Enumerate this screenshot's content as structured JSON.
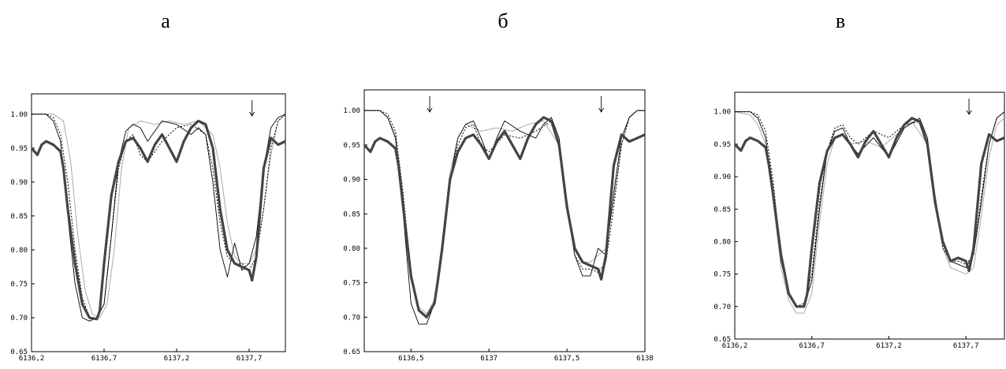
{
  "panels": [
    {
      "letter": "а"
    },
    {
      "letter": "б"
    },
    {
      "letter": "в"
    }
  ],
  "chart_data": [
    {
      "type": "line",
      "title": "",
      "xlabel": "",
      "ylabel": "",
      "xlim": [
        6136.2,
        6137.95
      ],
      "ylim": [
        0.65,
        1.03
      ],
      "xticks": [
        6136.2,
        6136.7,
        6137.2,
        6137.7
      ],
      "xtick_labels": [
        "6136,2",
        "6136,7",
        "6137,2",
        "6137,7"
      ],
      "yticks": [
        0.65,
        0.7,
        0.75,
        0.8,
        0.85,
        0.9,
        0.95,
        1.0
      ],
      "ytick_labels": [
        "0.65",
        "0.70",
        "0.75",
        "0.80",
        "0.85",
        "0.90",
        "0.95",
        "1.00"
      ],
      "arrows": [
        6137.72
      ],
      "series": [
        {
          "style": "thick",
          "x": [
            6136.2,
            6136.24,
            6136.27,
            6136.3,
            6136.35,
            6136.4,
            6136.42,
            6136.45,
            6136.5,
            6136.55,
            6136.6,
            6136.65,
            6136.67,
            6136.7,
            6136.75,
            6136.8,
            6136.85,
            6136.9,
            6136.95,
            6137.0,
            6137.05,
            6137.1,
            6137.15,
            6137.2,
            6137.25,
            6137.3,
            6137.35,
            6137.4,
            6137.45,
            6137.5,
            6137.55,
            6137.6,
            6137.65,
            6137.7,
            6137.72,
            6137.75,
            6137.8,
            6137.85,
            6137.9,
            6137.95
          ],
          "y": [
            0.95,
            0.94,
            0.955,
            0.96,
            0.955,
            0.945,
            0.92,
            0.86,
            0.78,
            0.72,
            0.7,
            0.698,
            0.71,
            0.78,
            0.88,
            0.93,
            0.96,
            0.965,
            0.95,
            0.93,
            0.955,
            0.97,
            0.95,
            0.93,
            0.96,
            0.98,
            0.99,
            0.985,
            0.95,
            0.86,
            0.8,
            0.78,
            0.775,
            0.77,
            0.755,
            0.79,
            0.92,
            0.965,
            0.955,
            0.96
          ]
        },
        {
          "style": "thin",
          "x": [
            6136.2,
            6136.3,
            6136.35,
            6136.4,
            6136.45,
            6136.5,
            6136.55,
            6136.6,
            6136.65,
            6136.7,
            6136.75,
            6136.8,
            6136.85,
            6136.9,
            6136.95,
            6137.0,
            6137.1,
            6137.2,
            6137.3,
            6137.35,
            6137.4,
            6137.45,
            6137.5,
            6137.55,
            6137.6,
            6137.65,
            6137.7,
            6137.75,
            6137.8,
            6137.85,
            6137.9,
            6137.95
          ],
          "y": [
            1.0,
            1.0,
            0.99,
            0.96,
            0.85,
            0.75,
            0.7,
            0.695,
            0.7,
            0.72,
            0.82,
            0.93,
            0.975,
            0.985,
            0.98,
            0.96,
            0.99,
            0.985,
            0.97,
            0.98,
            0.97,
            0.9,
            0.8,
            0.76,
            0.81,
            0.77,
            0.78,
            0.82,
            0.92,
            0.98,
            0.995,
            1.0
          ]
        },
        {
          "style": "dotted",
          "x": [
            6136.2,
            6136.3,
            6136.35,
            6136.4,
            6136.45,
            6136.5,
            6136.55,
            6136.6,
            6136.65,
            6136.7,
            6136.75,
            6136.8,
            6136.85,
            6136.9,
            6136.95,
            6137.0,
            6137.1,
            6137.2,
            6137.3,
            6137.4,
            6137.45,
            6137.5,
            6137.55,
            6137.6,
            6137.65,
            6137.7,
            6137.75,
            6137.8,
            6137.85,
            6137.9,
            6137.95
          ],
          "y": [
            1.0,
            1.0,
            0.995,
            0.97,
            0.9,
            0.8,
            0.73,
            0.7,
            0.7,
            0.72,
            0.82,
            0.92,
            0.96,
            0.97,
            0.94,
            0.93,
            0.96,
            0.98,
            0.985,
            0.97,
            0.92,
            0.84,
            0.79,
            0.78,
            0.78,
            0.77,
            0.79,
            0.86,
            0.95,
            0.99,
            1.0
          ]
        },
        {
          "style": "gray",
          "x": [
            6136.2,
            6136.35,
            6136.42,
            6136.47,
            6136.52,
            6136.57,
            6136.62,
            6136.67,
            6136.72,
            6136.77,
            6136.82,
            6136.87,
            6136.95,
            6137.05,
            6137.15,
            6137.25,
            6137.35,
            6137.45,
            6137.5,
            6137.55,
            6137.6,
            6137.65,
            6137.7,
            6137.75,
            6137.8,
            6137.85,
            6137.9,
            6137.95
          ],
          "y": [
            1.0,
            1.0,
            0.99,
            0.93,
            0.82,
            0.74,
            0.705,
            0.7,
            0.72,
            0.8,
            0.92,
            0.98,
            0.99,
            0.985,
            0.99,
            0.985,
            0.99,
            0.97,
            0.92,
            0.84,
            0.79,
            0.78,
            0.78,
            0.8,
            0.86,
            0.94,
            0.99,
            1.0
          ]
        }
      ]
    },
    {
      "type": "line",
      "title": "",
      "xlabel": "",
      "ylabel": "",
      "xlim": [
        6136.2,
        6138.0
      ],
      "ylim": [
        0.65,
        1.03
      ],
      "xticks": [
        6136.5,
        6137.0,
        6137.5,
        6138.0
      ],
      "xtick_labels": [
        "6136,5",
        "6137",
        "6137,5",
        "6138"
      ],
      "yticks": [
        0.65,
        0.7,
        0.75,
        0.8,
        0.85,
        0.9,
        0.95,
        1.0
      ],
      "ytick_labels": [
        "0.65",
        "0.70",
        "0.75",
        "0.80",
        "0.85",
        "0.90",
        "0.95",
        "1.00"
      ],
      "arrows": [
        6136.62,
        6137.72
      ],
      "series": [
        {
          "style": "thick",
          "x": [
            6136.2,
            6136.24,
            6136.27,
            6136.3,
            6136.35,
            6136.4,
            6136.42,
            6136.45,
            6136.5,
            6136.55,
            6136.6,
            6136.65,
            6136.67,
            6136.7,
            6136.75,
            6136.8,
            6136.85,
            6136.9,
            6136.95,
            6137.0,
            6137.05,
            6137.1,
            6137.15,
            6137.2,
            6137.25,
            6137.3,
            6137.35,
            6137.4,
            6137.45,
            6137.5,
            6137.55,
            6137.6,
            6137.65,
            6137.7,
            6137.72,
            6137.75,
            6137.8,
            6137.85,
            6137.9,
            6137.95,
            6138.0
          ],
          "y": [
            0.95,
            0.94,
            0.955,
            0.96,
            0.955,
            0.945,
            0.92,
            0.86,
            0.76,
            0.71,
            0.7,
            0.72,
            0.75,
            0.8,
            0.9,
            0.94,
            0.96,
            0.965,
            0.95,
            0.93,
            0.955,
            0.97,
            0.95,
            0.93,
            0.96,
            0.98,
            0.99,
            0.985,
            0.95,
            0.86,
            0.8,
            0.78,
            0.775,
            0.77,
            0.755,
            0.79,
            0.92,
            0.965,
            0.955,
            0.96,
            0.965
          ]
        },
        {
          "style": "thin",
          "x": [
            6136.2,
            6136.3,
            6136.35,
            6136.4,
            6136.45,
            6136.5,
            6136.55,
            6136.6,
            6136.65,
            6136.7,
            6136.75,
            6136.8,
            6136.85,
            6136.9,
            6136.95,
            6137.0,
            6137.05,
            6137.1,
            6137.2,
            6137.3,
            6137.35,
            6137.4,
            6137.45,
            6137.5,
            6137.55,
            6137.6,
            6137.65,
            6137.7,
            6137.75,
            6137.8,
            6137.85,
            6137.9,
            6137.95,
            6138.0
          ],
          "y": [
            1.0,
            1.0,
            0.99,
            0.96,
            0.85,
            0.72,
            0.69,
            0.69,
            0.72,
            0.8,
            0.9,
            0.96,
            0.98,
            0.985,
            0.96,
            0.93,
            0.96,
            0.985,
            0.97,
            0.96,
            0.98,
            0.99,
            0.96,
            0.86,
            0.79,
            0.76,
            0.76,
            0.8,
            0.79,
            0.88,
            0.96,
            0.99,
            1.0,
            1.0
          ]
        },
        {
          "style": "dotted",
          "x": [
            6136.2,
            6136.3,
            6136.35,
            6136.4,
            6136.45,
            6136.5,
            6136.55,
            6136.6,
            6136.65,
            6136.7,
            6136.75,
            6136.8,
            6136.85,
            6136.9,
            6136.95,
            6137.0,
            6137.1,
            6137.2,
            6137.3,
            6137.4,
            6137.45,
            6137.5,
            6137.55,
            6137.6,
            6137.65,
            6137.7,
            6137.75,
            6137.8,
            6137.85,
            6137.9,
            6137.95,
            6138.0
          ],
          "y": [
            1.0,
            1.0,
            0.995,
            0.97,
            0.88,
            0.76,
            0.71,
            0.7,
            0.72,
            0.8,
            0.9,
            0.95,
            0.975,
            0.98,
            0.95,
            0.94,
            0.965,
            0.96,
            0.97,
            0.985,
            0.95,
            0.86,
            0.79,
            0.77,
            0.77,
            0.765,
            0.78,
            0.86,
            0.95,
            0.99,
            1.0,
            1.0
          ]
        },
        {
          "style": "gray",
          "x": [
            6136.2,
            6136.3,
            6136.35,
            6136.4,
            6136.45,
            6136.5,
            6136.55,
            6136.6,
            6136.65,
            6136.7,
            6136.75,
            6136.8,
            6136.85,
            6136.95,
            6137.05,
            6137.15,
            6137.25,
            6137.35,
            6137.45,
            6137.5,
            6137.55,
            6137.6,
            6137.65,
            6137.7,
            6137.75,
            6137.8,
            6137.85,
            6137.9,
            6137.95,
            6138.0
          ],
          "y": [
            1.0,
            1.0,
            0.99,
            0.965,
            0.87,
            0.76,
            0.715,
            0.705,
            0.725,
            0.81,
            0.91,
            0.96,
            0.98,
            0.97,
            0.975,
            0.97,
            0.98,
            0.985,
            0.95,
            0.87,
            0.8,
            0.78,
            0.78,
            0.79,
            0.8,
            0.87,
            0.95,
            0.99,
            1.0,
            1.0
          ]
        }
      ]
    },
    {
      "type": "line",
      "title": "",
      "xlabel": "",
      "ylabel": "",
      "xlim": [
        6136.2,
        6137.95
      ],
      "ylim": [
        0.65,
        1.03
      ],
      "xticks": [
        6136.2,
        6136.7,
        6137.2,
        6137.7
      ],
      "xtick_labels": [
        "6136,2",
        "6136,7",
        "6137,2",
        "6137,7"
      ],
      "yticks": [
        0.65,
        0.7,
        0.75,
        0.8,
        0.85,
        0.9,
        0.95,
        1.0
      ],
      "ytick_labels": [
        "0.65",
        "0.70",
        "0.75",
        "0.80",
        "0.85",
        "0.90",
        "0.95",
        "1.00"
      ],
      "arrows": [
        6137.72
      ],
      "series": [
        {
          "style": "thick",
          "x": [
            6136.2,
            6136.24,
            6136.27,
            6136.3,
            6136.35,
            6136.4,
            6136.42,
            6136.45,
            6136.5,
            6136.55,
            6136.6,
            6136.65,
            6136.67,
            6136.7,
            6136.75,
            6136.8,
            6136.85,
            6136.9,
            6136.95,
            6137.0,
            6137.05,
            6137.1,
            6137.15,
            6137.2,
            6137.25,
            6137.3,
            6137.35,
            6137.4,
            6137.45,
            6137.5,
            6137.55,
            6137.6,
            6137.65,
            6137.7,
            6137.72,
            6137.75,
            6137.8,
            6137.85,
            6137.9,
            6137.95
          ],
          "y": [
            0.95,
            0.94,
            0.955,
            0.96,
            0.955,
            0.945,
            0.92,
            0.87,
            0.78,
            0.72,
            0.7,
            0.7,
            0.72,
            0.79,
            0.89,
            0.94,
            0.96,
            0.965,
            0.95,
            0.93,
            0.955,
            0.97,
            0.95,
            0.93,
            0.96,
            0.98,
            0.99,
            0.985,
            0.95,
            0.86,
            0.8,
            0.77,
            0.775,
            0.77,
            0.755,
            0.79,
            0.92,
            0.965,
            0.955,
            0.96
          ]
        },
        {
          "style": "thin",
          "x": [
            6136.2,
            6136.3,
            6136.35,
            6136.4,
            6136.45,
            6136.5,
            6136.55,
            6136.6,
            6136.65,
            6136.7,
            6136.75,
            6136.8,
            6136.85,
            6136.9,
            6136.95,
            6137.0,
            6137.1,
            6137.2,
            6137.3,
            6137.4,
            6137.45,
            6137.5,
            6137.55,
            6137.6,
            6137.65,
            6137.7,
            6137.75,
            6137.8,
            6137.85,
            6137.9,
            6137.95
          ],
          "y": [
            1.0,
            1.0,
            0.99,
            0.96,
            0.87,
            0.77,
            0.72,
            0.7,
            0.7,
            0.74,
            0.85,
            0.94,
            0.97,
            0.975,
            0.95,
            0.935,
            0.96,
            0.93,
            0.975,
            0.99,
            0.96,
            0.87,
            0.8,
            0.77,
            0.765,
            0.76,
            0.78,
            0.86,
            0.95,
            0.99,
            1.0
          ]
        },
        {
          "style": "dotted",
          "x": [
            6136.2,
            6136.3,
            6136.35,
            6136.4,
            6136.45,
            6136.5,
            6136.55,
            6136.6,
            6136.65,
            6136.7,
            6136.75,
            6136.8,
            6136.85,
            6136.9,
            6136.95,
            6137.0,
            6137.1,
            6137.2,
            6137.3,
            6137.4,
            6137.45,
            6137.5,
            6137.55,
            6137.6,
            6137.65,
            6137.7,
            6137.75,
            6137.8,
            6137.85,
            6137.9,
            6137.95
          ],
          "y": [
            1.0,
            1.0,
            0.995,
            0.97,
            0.89,
            0.78,
            0.72,
            0.7,
            0.705,
            0.75,
            0.86,
            0.94,
            0.975,
            0.98,
            0.96,
            0.95,
            0.97,
            0.96,
            0.98,
            0.985,
            0.95,
            0.86,
            0.79,
            0.77,
            0.77,
            0.765,
            0.78,
            0.87,
            0.95,
            0.99,
            1.0
          ]
        },
        {
          "style": "gray",
          "x": [
            6136.2,
            6136.3,
            6136.35,
            6136.4,
            6136.45,
            6136.5,
            6136.55,
            6136.6,
            6136.65,
            6136.7,
            6136.75,
            6136.8,
            6136.85,
            6136.9,
            6136.95,
            6137.05,
            6137.15,
            6137.25,
            6137.35,
            6137.45,
            6137.5,
            6137.55,
            6137.6,
            6137.65,
            6137.7,
            6137.75,
            6137.8,
            6137.85,
            6137.9,
            6137.95
          ],
          "y": [
            1.0,
            0.995,
            0.98,
            0.95,
            0.86,
            0.76,
            0.71,
            0.69,
            0.69,
            0.72,
            0.83,
            0.92,
            0.96,
            0.965,
            0.95,
            0.955,
            0.945,
            0.965,
            0.985,
            0.95,
            0.86,
            0.79,
            0.76,
            0.755,
            0.75,
            0.76,
            0.84,
            0.93,
            0.98,
            0.99
          ]
        }
      ]
    }
  ]
}
